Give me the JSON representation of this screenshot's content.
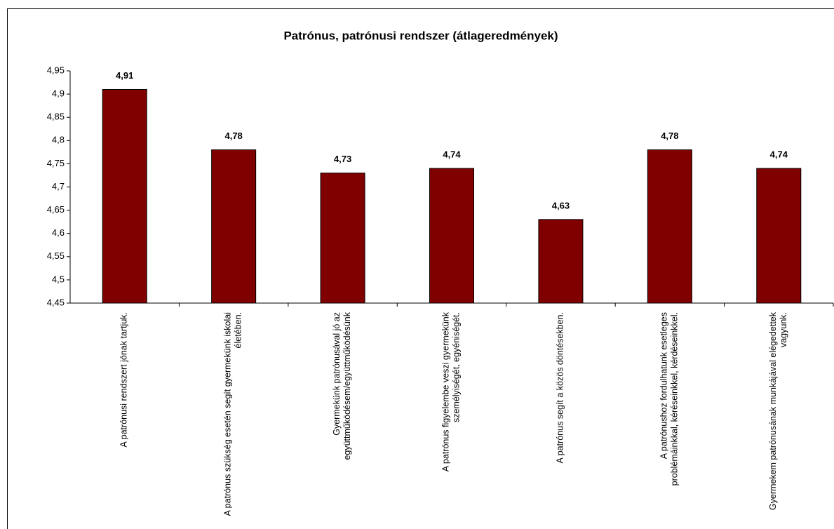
{
  "chart_data": {
    "type": "bar",
    "title": "Patrónus, patrónusi rendszer (átlageredmények)",
    "categories": [
      "A patrónusi rendszert jónak tartjuk.",
      "A patrónus szükség esetén segít gyermekünk iskolai életében.",
      "Gyermekünk patrónusával jó az együttműködésem/együttműködésünk",
      "A patrónus figyelembe veszi gyermekünk személyiségét, egyéniségét.",
      "A patrónus segít a közös döntésekben.",
      "A patrónushoz fordulhatunk esetleges problémáinkkal, kéréseinkkel, kérdéseinkkel.",
      "Gyermekem patrónusának munkájával elégedettek vagyunk."
    ],
    "values": [
      4.91,
      4.78,
      4.73,
      4.74,
      4.63,
      4.78,
      4.74
    ],
    "value_labels": [
      "4,91",
      "4,78",
      "4,73",
      "4,74",
      "4,63",
      "4,78",
      "4,74"
    ],
    "color": "#800000",
    "ylim": [
      4.45,
      4.95
    ],
    "yticks": [
      {
        "value": 4.45,
        "label": "4,45"
      },
      {
        "value": 4.5,
        "label": "4,5"
      },
      {
        "value": 4.55,
        "label": "4,55"
      },
      {
        "value": 4.6,
        "label": "4,6"
      },
      {
        "value": 4.65,
        "label": "4,65"
      },
      {
        "value": 4.7,
        "label": "4,7"
      },
      {
        "value": 4.75,
        "label": "4,75"
      },
      {
        "value": 4.8,
        "label": "4,8"
      },
      {
        "value": 4.85,
        "label": "4,85"
      },
      {
        "value": 4.9,
        "label": "4,9"
      },
      {
        "value": 4.95,
        "label": "4,95"
      }
    ]
  }
}
